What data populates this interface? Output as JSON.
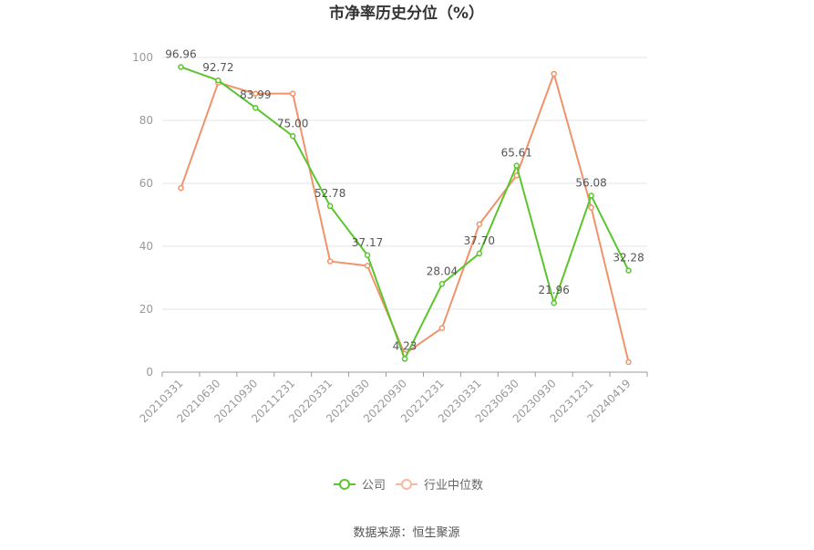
{
  "chart_data": {
    "type": "line",
    "title": "市净率历史分位（%）",
    "categories": [
      "20210331",
      "20210630",
      "20210930",
      "20211231",
      "20220331",
      "20220630",
      "20220930",
      "20221231",
      "20230331",
      "20230630",
      "20230930",
      "20231231",
      "20240419"
    ],
    "series": [
      {
        "name": "公司",
        "color": "#5ac52d",
        "values": [
          96.96,
          92.72,
          83.99,
          75.0,
          52.78,
          37.17,
          4.23,
          28.04,
          37.7,
          65.61,
          21.96,
          56.08,
          32.28
        ],
        "labels": [
          "96.96",
          "92.72",
          "83.99",
          "75.00",
          "52.78",
          "37.17",
          "4.23",
          "28.04",
          "37.70",
          "65.61",
          "21.96",
          "56.08",
          "32.28"
        ]
      },
      {
        "name": "行业中位数",
        "color": "#f0936a",
        "values": [
          58.5,
          92.0,
          88.5,
          88.5,
          35.2,
          33.8,
          5.8,
          14.0,
          47.0,
          62.5,
          94.8,
          52.3,
          3.2
        ]
      }
    ],
    "ylim": [
      0,
      100
    ],
    "yticks": [
      0,
      20,
      40,
      60,
      80,
      100
    ],
    "grid": true,
    "legend_position": "bottom"
  },
  "source": "数据来源：恒生聚源"
}
